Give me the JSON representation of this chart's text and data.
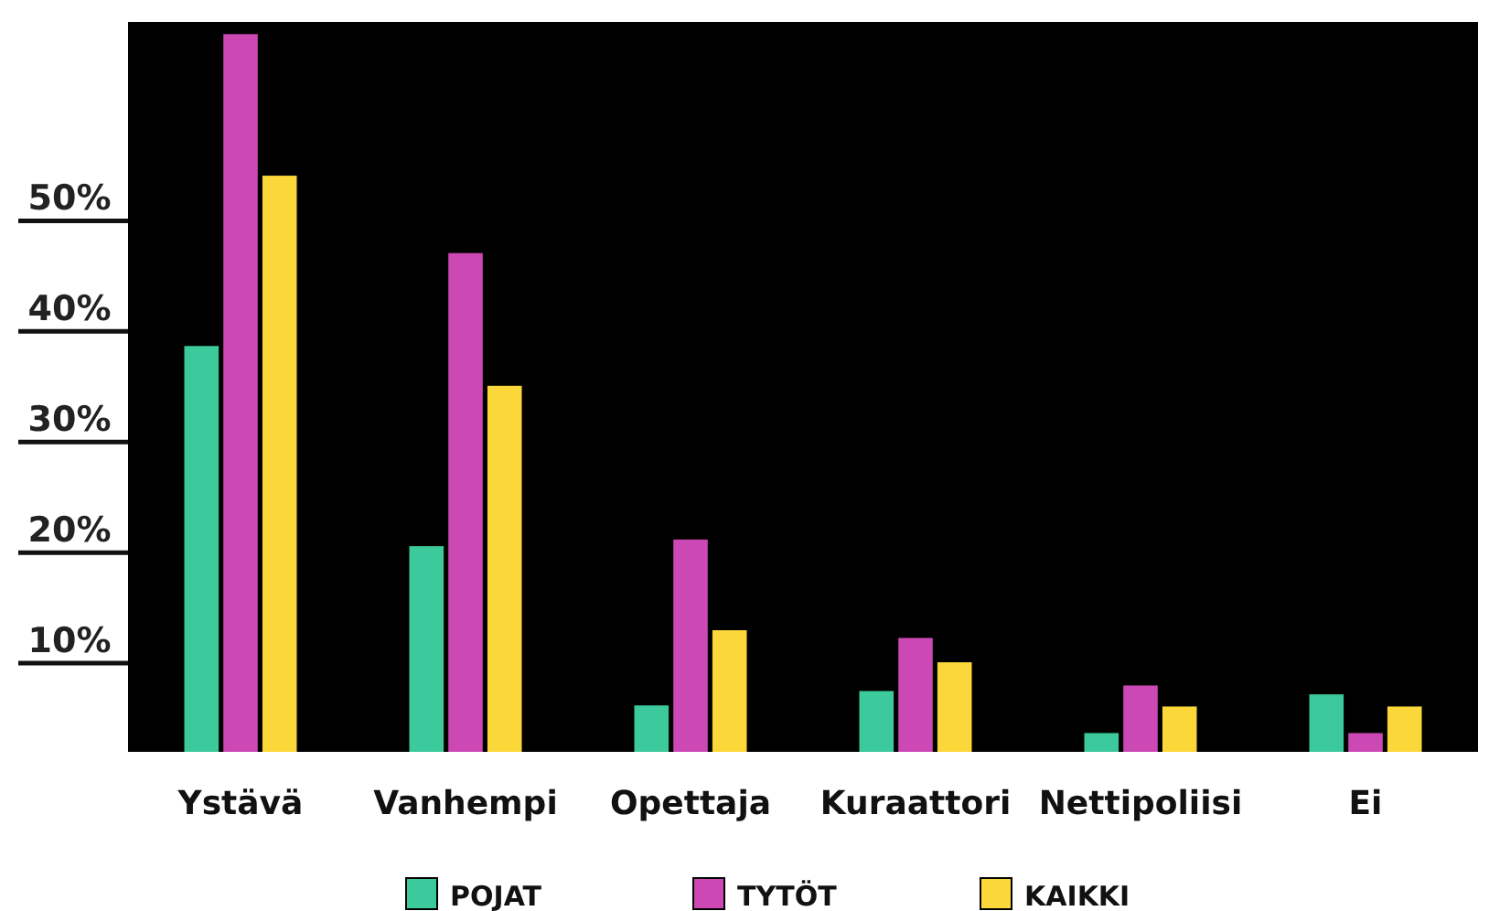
{
  "chart_data": {
    "type": "bar",
    "categories": [
      "Ystävä",
      "Vanhempi",
      "Opettaja",
      "Kuraattori",
      "Nettipoliisi",
      "Ei"
    ],
    "series": [
      {
        "name": "POJAT",
        "color": "#3cc99c",
        "values": [
          36.7,
          18.6,
          4.2,
          5.5,
          1.7,
          5.2
        ]
      },
      {
        "name": "TYTÖT",
        "color": "#cc48b4",
        "values": [
          64.9,
          45.1,
          19.2,
          10.3,
          6.0,
          1.7
        ]
      },
      {
        "name": "KAIKKI",
        "color": "#fcd73a",
        "values": [
          52.1,
          33.1,
          11.0,
          8.1,
          4.1,
          4.1
        ]
      }
    ],
    "ylim": [
      0,
      66
    ],
    "yticks": [
      {
        "value": 10,
        "label": "10%"
      },
      {
        "value": 20,
        "label": "20%"
      },
      {
        "value": 30,
        "label": "30%"
      },
      {
        "value": 40,
        "label": "40%"
      },
      {
        "value": 50,
        "label": "50%"
      }
    ],
    "legend": "bottom",
    "grid": false
  }
}
